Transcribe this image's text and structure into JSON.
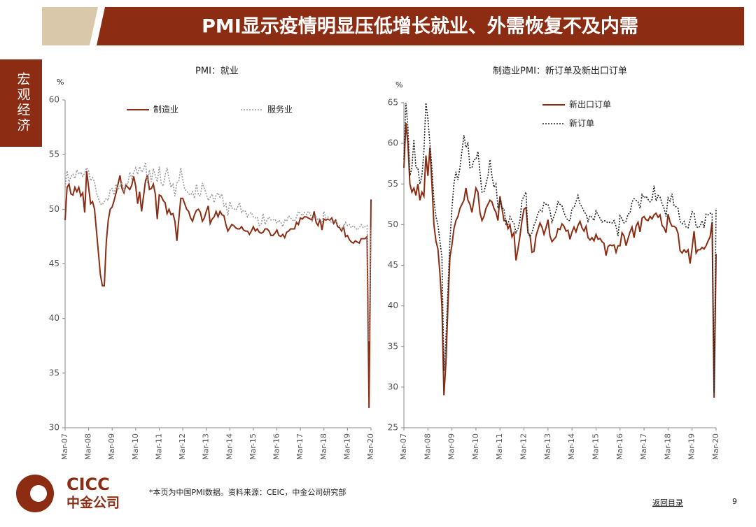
{
  "header": {
    "title": "PMI显示疫情明显压低增长就业、外需恢复不及内需",
    "side_tab": "宏观经济"
  },
  "footer": {
    "logo_en": "CICC",
    "logo_cn": "中金公司",
    "note": "*本页为中国PMI数据。资料来源：CEIC，中金公司研究部",
    "back_link": "返回目录",
    "page_number": "9"
  },
  "chart_data": [
    {
      "type": "line",
      "title": "PMI：就业",
      "y_unit": "%",
      "ylim": [
        30,
        60
      ],
      "yticks": [
        30,
        35,
        40,
        45,
        50,
        55,
        60
      ],
      "legend": "top",
      "categories": [
        "Mar-07",
        null,
        null,
        null,
        null,
        null,
        null,
        null,
        null,
        null,
        null,
        null,
        "Mar-08",
        null,
        null,
        null,
        null,
        null,
        null,
        null,
        null,
        null,
        null,
        null,
        "Mar-09",
        null,
        null,
        null,
        null,
        null,
        null,
        null,
        null,
        null,
        null,
        null,
        "Mar-10",
        null,
        null,
        null,
        null,
        null,
        null,
        null,
        null,
        null,
        null,
        null,
        "Mar-11",
        null,
        null,
        null,
        null,
        null,
        null,
        null,
        null,
        null,
        null,
        null,
        "Mar-12",
        null,
        null,
        null,
        null,
        null,
        null,
        null,
        null,
        null,
        null,
        null,
        "Mar-13",
        null,
        null,
        null,
        null,
        null,
        null,
        null,
        null,
        null,
        null,
        null,
        "Mar-14",
        null,
        null,
        null,
        null,
        null,
        null,
        null,
        null,
        null,
        null,
        null,
        "Mar-15",
        null,
        null,
        null,
        null,
        null,
        null,
        null,
        null,
        null,
        null,
        null,
        "Mar-16",
        null,
        null,
        null,
        null,
        null,
        null,
        null,
        null,
        null,
        null,
        null,
        "Mar-17",
        null,
        null,
        null,
        null,
        null,
        null,
        null,
        null,
        null,
        null,
        null,
        "Mar-18",
        null,
        null,
        null,
        null,
        null,
        null,
        null,
        null,
        null,
        null,
        null,
        "Mar-19",
        null,
        null,
        null,
        null,
        null,
        null,
        null,
        null,
        null,
        null,
        null,
        "Mar-20"
      ],
      "series": [
        {
          "name": "制造业",
          "color": "#8b2c13",
          "style": "solid",
          "values": [
            49,
            52,
            52.3,
            51.4,
            51.3,
            52,
            51.6,
            52,
            51.2,
            51.5,
            49.7,
            53.5,
            52,
            50.5,
            50.7,
            50,
            48,
            46,
            44,
            43,
            43,
            47,
            49,
            50,
            50.2,
            50.8,
            51.5,
            52.3,
            53.1,
            51.9,
            51.5,
            52.2,
            52.0,
            51.8,
            52.2,
            53.0,
            52.1,
            50.5,
            51.6,
            49.8,
            51.2,
            52.6,
            53.1,
            51.8,
            51.9,
            52.3,
            51.4,
            49.1,
            51.3,
            51.2,
            50.8,
            50.6,
            49.6,
            50.0,
            49.5,
            49.6,
            48.9,
            47.1,
            49.1,
            51.0,
            51.0,
            50.5,
            50.0,
            49.8,
            49.2,
            48.9,
            49.5,
            49.9,
            50.0,
            49.7,
            48.9,
            49.2,
            49.8,
            50.3,
            48.7,
            49.1,
            49.3,
            49.8,
            49.3,
            49.8,
            49.5,
            49.4,
            48.6,
            48.0,
            48.3,
            48.6,
            48.5,
            48.3,
            48.2,
            48.2,
            48.4,
            48.1,
            48.0,
            48.0,
            47.7,
            48.0,
            48.4,
            48.0,
            48.2,
            47.9,
            47.8,
            47.9,
            48.2,
            48.2,
            48.0,
            47.6,
            47.6,
            47.8,
            48.1,
            47.6,
            47.5,
            47.7,
            47.4,
            47.9,
            48.0,
            48.2,
            48.2,
            48.2,
            48.8,
            48.6,
            49.2,
            49.1,
            49.3,
            49.3,
            49.2,
            49.1,
            49.0,
            49.8,
            48.8,
            48.5,
            49.1,
            48.1,
            49.1,
            49.0,
            49.1,
            49.0,
            49.2,
            48.7,
            49.0,
            48.4,
            48.3,
            48.0,
            48.4,
            47.5,
            47.6,
            47.2,
            47.0,
            46.9,
            47.1,
            47.0,
            46.9,
            47.3,
            47.3,
            47.3,
            47.5,
            31.8,
            50.9
          ]
        },
        {
          "name": "服务业",
          "color": "#9a9a9a",
          "style": "dotted",
          "values": [
            52,
            53.5,
            52.5,
            53,
            53.2,
            52.8,
            53.6,
            53.2,
            53.4,
            53.0,
            53.3,
            53.8,
            53.5,
            52.6,
            52.9,
            52.5,
            51.5,
            51.0,
            50.5,
            50.4,
            50.7,
            51.0,
            50.8,
            51.8,
            51.9,
            51.3,
            52.3,
            51.8,
            52.1,
            52.5,
            51.6,
            52.4,
            52.3,
            53.4,
            52.8,
            53.4,
            53.8,
            53.2,
            53.9,
            53.4,
            53.6,
            54.3,
            52.4,
            53.6,
            52.5,
            53.7,
            53.1,
            52.5,
            53.9,
            52.4,
            52.1,
            53.1,
            53.8,
            52.8,
            52.0,
            52.3,
            51.2,
            52.4,
            52.6,
            53.8,
            52.7,
            51.8,
            51.7,
            51.4,
            51.3,
            51.6,
            51.0,
            52.3,
            51.3,
            51.2,
            52.4,
            51.9,
            51.4,
            50.8,
            51.1,
            51.4,
            50.6,
            51.3,
            51.5,
            51.1,
            51.4,
            50.3,
            50.5,
            49.4,
            50.7,
            50.1,
            50.1,
            49.9,
            50.2,
            50.6,
            49.7,
            49.9,
            49.8,
            49.3,
            49.6,
            49.7,
            49.3,
            49.2,
            49.3,
            48.5,
            48.6,
            49.6,
            48.6,
            49.0,
            49.3,
            49.0,
            49.0,
            49.1,
            48.7,
            49.0,
            48.8,
            48.4,
            49.0,
            48.9,
            49.4,
            49.2,
            49.0,
            48.9,
            49.3,
            49.8,
            49.6,
            49.4,
            49.7,
            49.5,
            49.8,
            49.6,
            48.9,
            49.4,
            49.3,
            49.0,
            49.2,
            48.6,
            49.8,
            49.2,
            49.3,
            49.0,
            48.7,
            48.9,
            49.0,
            48.6,
            48.5,
            48.1,
            48.4,
            48.8,
            48.5,
            48.6,
            48.3,
            48.5,
            48.3,
            48.1,
            48.3,
            48.6,
            48.3,
            48.4,
            48.5,
            37.9,
            48.3
          ]
        }
      ]
    },
    {
      "type": "line",
      "title": "制造业PMI：新订单及新出口订单",
      "y_unit": "%",
      "ylim": [
        25,
        65
      ],
      "yticks": [
        25,
        30,
        35,
        40,
        45,
        50,
        55,
        60,
        65
      ],
      "legend": "top-left",
      "categories": [
        "Mar-07",
        null,
        null,
        null,
        null,
        null,
        null,
        null,
        null,
        null,
        null,
        null,
        "Mar-08",
        null,
        null,
        null,
        null,
        null,
        null,
        null,
        null,
        null,
        null,
        null,
        "Mar-09",
        null,
        null,
        null,
        null,
        null,
        null,
        null,
        null,
        null,
        null,
        null,
        "Mar-10",
        null,
        null,
        null,
        null,
        null,
        null,
        null,
        null,
        null,
        null,
        null,
        "Mar-11",
        null,
        null,
        null,
        null,
        null,
        null,
        null,
        null,
        null,
        null,
        null,
        "Mar-12",
        null,
        null,
        null,
        null,
        null,
        null,
        null,
        null,
        null,
        null,
        null,
        "Mar-13",
        null,
        null,
        null,
        null,
        null,
        null,
        null,
        null,
        null,
        null,
        null,
        "Mar-14",
        null,
        null,
        null,
        null,
        null,
        null,
        null,
        null,
        null,
        null,
        null,
        "Mar-15",
        null,
        null,
        null,
        null,
        null,
        null,
        null,
        null,
        null,
        null,
        null,
        "Mar-16",
        null,
        null,
        null,
        null,
        null,
        null,
        null,
        null,
        null,
        null,
        null,
        "Mar-17",
        null,
        null,
        null,
        null,
        null,
        null,
        null,
        null,
        null,
        null,
        null,
        "Mar-18",
        null,
        null,
        null,
        null,
        null,
        null,
        null,
        null,
        null,
        null,
        null,
        "Mar-19",
        null,
        null,
        null,
        null,
        null,
        null,
        null,
        null,
        null,
        null,
        null,
        "Mar-20"
      ],
      "series": [
        {
          "name": "新出口订单",
          "color": "#8b2c13",
          "style": "solid",
          "values": [
            57,
            62.5,
            60,
            55,
            54,
            54.5,
            53.6,
            55,
            53,
            54,
            53.5,
            58.5,
            56,
            59.5,
            55,
            50,
            48,
            47,
            44,
            40,
            29.0,
            33,
            40,
            46,
            47.5,
            49.5,
            50.5,
            51,
            52,
            52.5,
            53,
            54.5,
            53,
            52.5,
            51.5,
            53,
            54.5,
            54,
            51.5,
            50.5,
            51,
            52,
            52.5,
            53,
            52.8,
            52,
            51.5,
            50.5,
            53.5,
            52,
            50.5,
            50.5,
            49.5,
            50,
            48.5,
            49,
            45.6,
            47,
            48.6,
            50.5,
            51.9,
            52.1,
            49,
            48.7,
            46.6,
            46.7,
            48.6,
            49.4,
            50.2,
            49.7,
            48.8,
            49.6,
            50.6,
            48.6,
            47.9,
            48.2,
            48.5,
            49.5,
            49.4,
            50.1,
            49.8,
            49.2,
            49.3,
            48.2,
            49.1,
            49.7,
            49.1,
            49.9,
            50.4,
            49.6,
            49.2,
            49.8,
            48.4,
            48.1,
            48.4,
            48.0,
            48.8,
            48.2,
            48.3,
            47.9,
            47.7,
            46.2,
            47.3,
            47.5,
            47.4,
            47.5,
            46.6,
            47.4,
            47.4,
            49.0,
            48.6,
            47.4,
            48.3,
            49.1,
            49.7,
            48.4,
            49.8,
            50.3,
            49.1,
            50.8,
            51.0,
            50.6,
            50.5,
            51.0,
            50.7,
            51.2,
            51.4,
            50.9,
            51.2,
            49.9,
            49.6,
            49.0,
            51.3,
            50.3,
            49.8,
            49.8,
            49.6,
            48.9,
            46.8,
            46.5,
            46.9,
            46.6,
            46.9,
            45.2,
            47.1,
            49.2,
            46.5,
            46.9,
            46.9,
            47.2,
            47.0,
            47.4,
            48.0,
            48.5,
            50.3,
            28.7,
            46.4
          ]
        },
        {
          "name": "新订单",
          "color": "#222222",
          "style": "dotted",
          "values": [
            58,
            65,
            62,
            56,
            57,
            60.5,
            57,
            57,
            55,
            56,
            59,
            65,
            63,
            60,
            57,
            53,
            51,
            50,
            48,
            46,
            32,
            36,
            42,
            48,
            52,
            55,
            56.5,
            55.5,
            57,
            59,
            61,
            59.5,
            60,
            57,
            57,
            58,
            58,
            59,
            56.5,
            54,
            54,
            55,
            56,
            58,
            56,
            54.6,
            55,
            52,
            53,
            52,
            52,
            50,
            50,
            51,
            50.5,
            50.2,
            49,
            49.5,
            50.5,
            53,
            53.5,
            54,
            49,
            48.5,
            49,
            49.9,
            50.5,
            51.4,
            51.8,
            51.6,
            52.7,
            52.5,
            52.5,
            51.7,
            50.3,
            51,
            51.7,
            52.8,
            52.5,
            52.3,
            51.5,
            50.9,
            50.5,
            50.5,
            52.0,
            52.1,
            52.8,
            53.6,
            52.5,
            52.2,
            51.6,
            51.3,
            50.4,
            51.1,
            50.9,
            50.5,
            51.7,
            51.2,
            50.8,
            50.3,
            50.5,
            50.4,
            50.2,
            50.3,
            50.2,
            50.5,
            49.8,
            48.6,
            51.1,
            50.7,
            50.2,
            50.4,
            51.3,
            51.4,
            52.8,
            53.2,
            53.0,
            52.8,
            52.0,
            53.7,
            53.3,
            53.5,
            53.1,
            52.8,
            53.1,
            54.8,
            52.9,
            53.6,
            53.4,
            52.6,
            52.0,
            51.0,
            53.3,
            52.9,
            53.8,
            52.3,
            52.2,
            52.0,
            50.4,
            50.1,
            50.4,
            49.7,
            49.6,
            50.6,
            51.6,
            51.4,
            49.8,
            49.6,
            49.8,
            50.5,
            49.6,
            51.3,
            51.2,
            51.4,
            51.4,
            29.3,
            52.0
          ]
        }
      ]
    }
  ]
}
